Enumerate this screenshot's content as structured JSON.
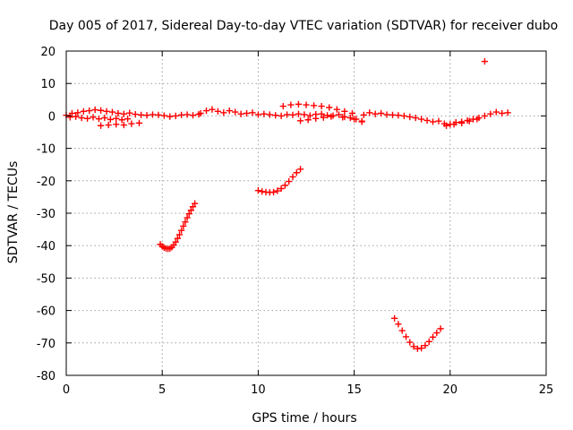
{
  "chart_data": {
    "type": "scatter",
    "title": "Day 005 of 2017, Sidereal Day-to-day VTEC variation (SDTVAR) for receiver dubo",
    "xlabel": "GPS time / hours",
    "ylabel": "SDTVAR / TECUs",
    "xlim": [
      0,
      25
    ],
    "ylim": [
      -80,
      20
    ],
    "xticks": [
      0,
      5,
      10,
      15,
      20,
      25
    ],
    "yticks": [
      -80,
      -70,
      -60,
      -50,
      -40,
      -30,
      -20,
      -10,
      0,
      10,
      20
    ],
    "grid": true,
    "marker": "+",
    "color": "#ff0000",
    "series": [
      {
        "name": "band-0-7h",
        "x": [
          0.0,
          0.3,
          0.6,
          0.9,
          1.2,
          1.5,
          1.8,
          2.1,
          2.4,
          2.7,
          3.0,
          3.3,
          3.6,
          3.9,
          4.2,
          4.5,
          4.8,
          5.1,
          5.4,
          5.7,
          6.0,
          6.3,
          6.6,
          6.9,
          0.2,
          0.5,
          0.8,
          1.1,
          1.4,
          1.7,
          2.0,
          2.3,
          2.6,
          2.9,
          3.2,
          1.8,
          2.2,
          2.6,
          3.0,
          3.4,
          3.8
        ],
        "y": [
          0.2,
          0.8,
          1.0,
          1.4,
          1.6,
          1.9,
          1.7,
          1.4,
          1.2,
          0.8,
          0.6,
          0.9,
          0.5,
          0.3,
          0.2,
          0.4,
          0.3,
          0.1,
          -0.2,
          0.0,
          0.3,
          0.4,
          0.2,
          0.5,
          -0.4,
          -0.2,
          -0.6,
          -0.8,
          -0.4,
          -0.9,
          -0.6,
          -1.1,
          -0.8,
          -1.2,
          -0.9,
          -3.0,
          -2.8,
          -2.6,
          -2.8,
          -2.4,
          -2.2
        ]
      },
      {
        "name": "band-7-15h",
        "x": [
          7.0,
          7.3,
          7.6,
          7.9,
          8.2,
          8.5,
          8.8,
          9.1,
          9.4,
          9.7,
          10.0,
          10.3,
          10.6,
          10.9,
          11.2,
          11.5,
          11.8,
          12.1,
          12.4,
          12.7,
          13.0,
          13.3,
          13.6,
          13.9,
          14.2,
          14.5,
          14.8,
          15.1,
          15.4,
          11.3,
          11.7,
          12.1,
          12.5,
          12.9,
          13.3,
          13.7,
          14.1,
          14.5,
          14.9,
          12.2,
          12.6,
          13.0,
          13.4,
          13.8,
          14.4,
          15.0,
          15.4
        ],
        "y": [
          0.8,
          1.6,
          2.0,
          1.4,
          1.0,
          1.6,
          1.2,
          0.6,
          0.8,
          1.0,
          0.4,
          0.6,
          0.4,
          0.2,
          0.0,
          0.4,
          0.3,
          0.6,
          0.4,
          0.1,
          0.5,
          0.6,
          0.2,
          0.1,
          0.4,
          -0.3,
          -0.6,
          -1.0,
          -1.8,
          3.0,
          3.4,
          3.6,
          3.4,
          3.2,
          3.0,
          2.6,
          2.0,
          1.4,
          0.8,
          -1.5,
          -1.2,
          -0.8,
          -0.5,
          -0.2,
          -0.4,
          -1.0,
          -1.6
        ]
      },
      {
        "name": "band-15-23h",
        "x": [
          15.5,
          15.8,
          16.1,
          16.4,
          16.7,
          17.0,
          17.3,
          17.6,
          17.9,
          18.2,
          18.5,
          18.8,
          19.1,
          19.4,
          19.7,
          20.0,
          20.3,
          20.6,
          20.9,
          21.2,
          21.5,
          21.8,
          22.1,
          22.4,
          22.7,
          23.0,
          19.8,
          20.2,
          20.6,
          21.0,
          21.4
        ],
        "y": [
          0.3,
          1.0,
          0.6,
          0.8,
          0.4,
          0.3,
          0.2,
          0.0,
          -0.3,
          -0.6,
          -1.0,
          -1.4,
          -1.8,
          -1.6,
          -2.4,
          -2.6,
          -2.0,
          -1.8,
          -1.4,
          -1.0,
          -0.6,
          0.0,
          0.6,
          1.2,
          0.8,
          1.0,
          -3.0,
          -2.6,
          -2.2,
          -1.6,
          -1.0
        ]
      },
      {
        "name": "arc-5h",
        "x": [
          4.9,
          5.0,
          5.1,
          5.2,
          5.3,
          5.4,
          5.5,
          5.6,
          5.7,
          5.8,
          5.9,
          6.0,
          6.1,
          6.2,
          6.3,
          6.4,
          6.5,
          6.6,
          6.7
        ],
        "y": [
          -39.6,
          -40.2,
          -40.6,
          -40.9,
          -41.0,
          -40.9,
          -40.5,
          -39.8,
          -38.9,
          -37.8,
          -36.6,
          -35.3,
          -34.0,
          -32.7,
          -31.4,
          -30.2,
          -29.1,
          -28.0,
          -27.0
        ]
      },
      {
        "name": "arc-10h",
        "x": [
          10.0,
          10.2,
          10.4,
          10.6,
          10.8,
          11.0,
          11.2,
          11.4,
          11.6,
          11.8,
          12.0,
          12.2
        ],
        "y": [
          -23.0,
          -23.3,
          -23.5,
          -23.6,
          -23.5,
          -23.1,
          -22.4,
          -21.4,
          -20.2,
          -18.8,
          -17.5,
          -16.4
        ]
      },
      {
        "name": "arc-17h",
        "x": [
          17.1,
          17.3,
          17.5,
          17.7,
          17.9,
          18.1,
          18.3,
          18.5,
          18.7,
          18.9,
          19.1,
          19.3,
          19.5
        ],
        "y": [
          -62.4,
          -64.2,
          -66.2,
          -68.1,
          -69.8,
          -71.1,
          -71.8,
          -71.6,
          -70.8,
          -69.6,
          -68.2,
          -66.9,
          -65.6
        ]
      },
      {
        "name": "outlier",
        "x": [
          21.8
        ],
        "y": [
          16.8
        ]
      }
    ]
  }
}
